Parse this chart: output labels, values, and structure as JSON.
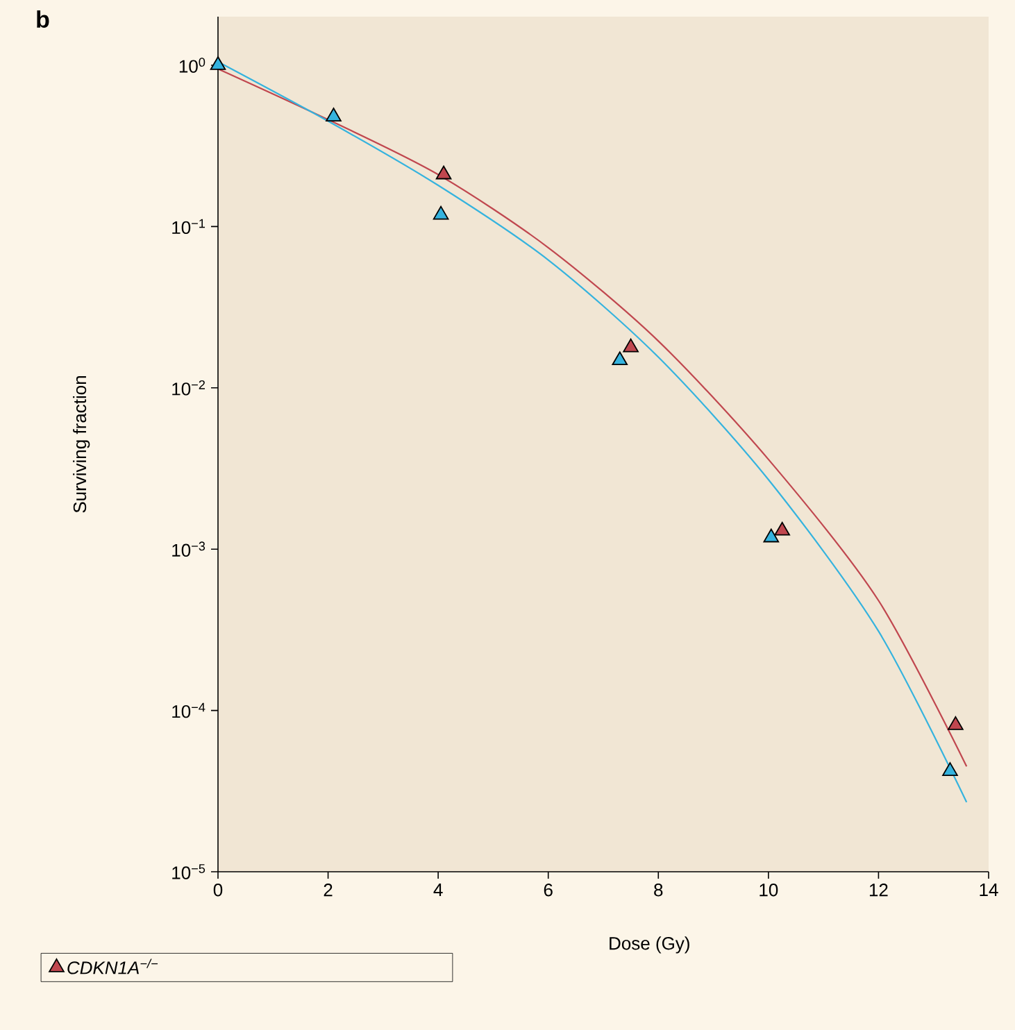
{
  "chart_data": {
    "type": "scatter",
    "xlabel": "Dose (Gy)",
    "ylabel": "Surviving fraction",
    "annotations": [
      "b"
    ],
    "log": "y",
    "xlim": [
      0,
      14
    ],
    "ylim": [
      1e-05,
      2
    ],
    "xticks": [
      0,
      2,
      4,
      6,
      8,
      10,
      12,
      14
    ],
    "yticks": [
      {
        "value": 1e-05,
        "label": "10$^{−5}$"
      },
      {
        "value": 0.0001,
        "label": "10$^{−4}$"
      },
      {
        "value": 0.001,
        "label": "10$^{−3}$"
      },
      {
        "value": 0.01,
        "label": "10$^{−2}$"
      },
      {
        "value": 0.1,
        "label": "10$^{−1}$"
      },
      {
        "value": 1,
        "label": "10$^{0}$"
      }
    ],
    "grid": false,
    "legend": "bottom left",
    "series": [
      {
        "type": "line",
        "marker": "none",
        "color": "#c0474f",
        "x": [
          0,
          2,
          4,
          6,
          8,
          10,
          12,
          13.6
        ],
        "values": [
          0.95,
          0.46,
          0.21,
          0.074,
          0.0195,
          0.0036,
          0.00048,
          4.5e-05
        ]
      },
      {
        "type": "line",
        "marker": "none",
        "color": "#35b3de",
        "x": [
          0,
          2,
          4,
          6,
          8,
          10,
          12,
          13.6
        ],
        "values": [
          1.05,
          0.45,
          0.18,
          0.062,
          0.0155,
          0.0027,
          0.00031,
          2.7e-05
        ]
      },
      {
        "marker": "triangle",
        "name": "CDKN1A$^{−/−}$",
        "color": "#c0474f",
        "x": [
          4.1,
          7.5,
          10.25,
          13.4
        ],
        "values": [
          0.21,
          0.0178,
          0.0013,
          8.1e-05
        ]
      },
      {
        "marker": "triangle",
        "color": "#35b3de",
        "x": [
          0,
          2.1,
          4.05,
          7.3,
          10.05,
          13.3
        ],
        "values": [
          1.0,
          0.48,
          0.118,
          0.0148,
          0.00118,
          4.2e-05
        ]
      }
    ]
  }
}
